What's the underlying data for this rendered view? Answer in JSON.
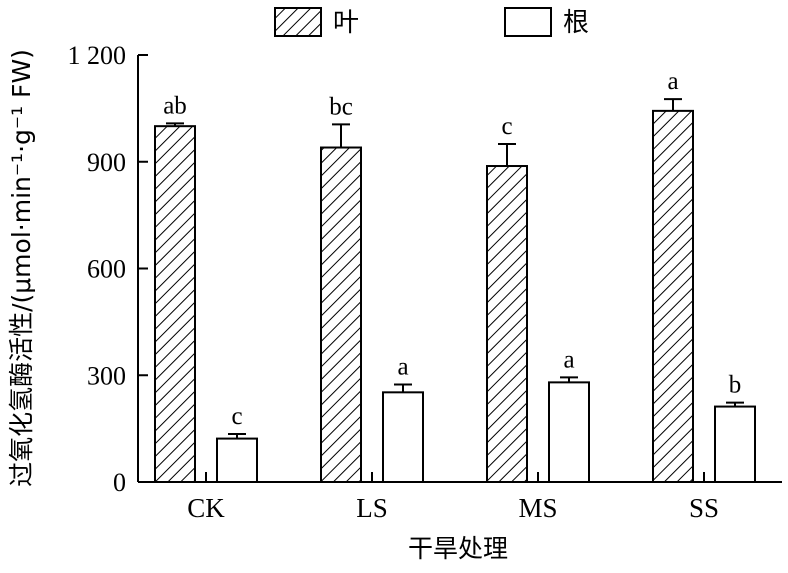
{
  "chart_data": {
    "type": "bar",
    "categories": [
      "CK",
      "LS",
      "MS",
      "SS"
    ],
    "series": [
      {
        "name": "叶",
        "pattern": "hatch",
        "values": [
          1000,
          940,
          888,
          1043
        ],
        "errors": [
          8,
          65,
          62,
          33
        ],
        "labels": [
          "ab",
          "bc",
          "c",
          "a"
        ]
      },
      {
        "name": "根",
        "pattern": "solid",
        "values": [
          122,
          252,
          280,
          212
        ],
        "errors": [
          13,
          22,
          14,
          11
        ],
        "labels": [
          "c",
          "a",
          "a",
          "b"
        ]
      }
    ],
    "xlabel": "干旱处理",
    "ylabel": "过氧化氢酶活性/(μmol·min⁻¹·g⁻¹ FW)",
    "ylim": [
      0,
      1200
    ],
    "yticks": [
      0,
      300,
      600,
      900,
      1200
    ],
    "ytick_labels": [
      "0",
      "300",
      "600",
      "900",
      "1 200"
    ],
    "legend_position": "top",
    "grid": false
  }
}
